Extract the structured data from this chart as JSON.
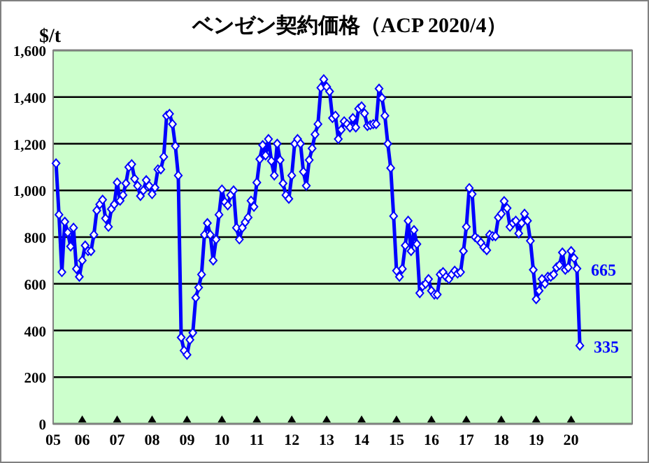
{
  "chart_data": {
    "type": "line",
    "title": "ベンゼン契約価格（ACP 2020/4）",
    "ylabel": "$/t",
    "color": "#0000ff",
    "marker": "diamond",
    "grid": "y",
    "xlim": [
      "2005-03",
      "2021-10"
    ],
    "ylim": [
      0,
      1600
    ],
    "xticks": [
      {
        "value": "2005-03",
        "label": "05"
      },
      {
        "value": "2006-01",
        "label": "06"
      },
      {
        "value": "2007-01",
        "label": "07"
      },
      {
        "value": "2008-01",
        "label": "08"
      },
      {
        "value": "2009-01",
        "label": "09"
      },
      {
        "value": "2010-01",
        "label": "10"
      },
      {
        "value": "2011-01",
        "label": "11"
      },
      {
        "value": "2012-01",
        "label": "12"
      },
      {
        "value": "2013-01",
        "label": "13"
      },
      {
        "value": "2014-01",
        "label": "14"
      },
      {
        "value": "2015-01",
        "label": "15"
      },
      {
        "value": "2016-01",
        "label": "16"
      },
      {
        "value": "2017-01",
        "label": "17"
      },
      {
        "value": "2018-01",
        "label": "18"
      },
      {
        "value": "2019-01",
        "label": "19"
      },
      {
        "value": "2020-01",
        "label": "20"
      }
    ],
    "yticks": [
      0,
      200,
      400,
      600,
      800,
      {
        "value": 1000,
        "label": "1,000"
      },
      {
        "value": 1200,
        "label": "1,200"
      },
      {
        "value": 1400,
        "label": "1,400"
      },
      {
        "value": 1600,
        "label": "1,600"
      }
    ],
    "x": [
      "2005-04",
      "2005-05",
      "2005-06",
      "2005-07",
      "2005-08",
      "2005-09",
      "2005-10",
      "2005-11",
      "2005-12",
      "2006-01",
      "2006-02",
      "2006-03",
      "2006-04",
      "2006-05",
      "2006-06",
      "2006-07",
      "2006-08",
      "2006-09",
      "2006-10",
      "2006-11",
      "2006-12",
      "2007-01",
      "2007-02",
      "2007-03",
      "2007-04",
      "2007-05",
      "2007-06",
      "2007-07",
      "2007-08",
      "2007-09",
      "2007-10",
      "2007-11",
      "2007-12",
      "2008-01",
      "2008-02",
      "2008-03",
      "2008-04",
      "2008-05",
      "2008-06",
      "2008-07",
      "2008-08",
      "2008-09",
      "2008-10",
      "2008-11",
      "2008-12",
      "2009-01",
      "2009-02",
      "2009-03",
      "2009-04",
      "2009-05",
      "2009-06",
      "2009-07",
      "2009-08",
      "2009-09",
      "2009-10",
      "2009-11",
      "2009-12",
      "2010-01",
      "2010-02",
      "2010-03",
      "2010-04",
      "2010-05",
      "2010-06",
      "2010-07",
      "2010-08",
      "2010-09",
      "2010-10",
      "2010-11",
      "2010-12",
      "2011-01",
      "2011-02",
      "2011-03",
      "2011-04",
      "2011-05",
      "2011-06",
      "2011-07",
      "2011-08",
      "2011-09",
      "2011-10",
      "2011-11",
      "2011-12",
      "2012-01",
      "2012-02",
      "2012-03",
      "2012-04",
      "2012-05",
      "2012-06",
      "2012-07",
      "2012-08",
      "2012-09",
      "2012-10",
      "2012-11",
      "2012-12",
      "2013-01",
      "2013-02",
      "2013-03",
      "2013-04",
      "2013-05",
      "2013-06",
      "2013-07",
      "2013-08",
      "2013-09",
      "2013-10",
      "2013-11",
      "2013-12",
      "2014-01",
      "2014-02",
      "2014-03",
      "2014-04",
      "2014-05",
      "2014-06",
      "2014-07",
      "2014-08",
      "2014-09",
      "2014-10",
      "2014-11",
      "2014-12",
      "2015-01",
      "2015-02",
      "2015-03",
      "2015-04",
      "2015-05",
      "2015-06",
      "2015-07",
      "2015-08",
      "2015-09",
      "2015-10",
      "2015-11",
      "2015-12",
      "2016-01",
      "2016-02",
      "2016-03",
      "2016-04",
      "2016-05",
      "2016-06",
      "2016-07",
      "2016-08",
      "2016-09",
      "2016-10",
      "2016-11",
      "2016-12",
      "2017-01",
      "2017-02",
      "2017-03",
      "2017-04",
      "2017-05",
      "2017-06",
      "2017-07",
      "2017-08",
      "2017-09",
      "2017-10",
      "2017-11",
      "2017-12",
      "2018-01",
      "2018-02",
      "2018-03",
      "2018-04",
      "2018-05",
      "2018-06",
      "2018-07",
      "2018-08",
      "2018-09",
      "2018-10",
      "2018-11",
      "2018-12",
      "2019-01",
      "2019-02",
      "2019-03",
      "2019-04",
      "2019-05",
      "2019-06",
      "2019-07",
      "2019-08",
      "2019-09",
      "2019-10",
      "2019-11",
      "2019-12",
      "2020-01",
      "2020-02",
      "2020-03",
      "2020-04"
    ],
    "values": [
      1116,
      896,
      650,
      866,
      820,
      760,
      840,
      664,
      630,
      700,
      764,
      740,
      740,
      810,
      914,
      940,
      960,
      880,
      844,
      920,
      940,
      1034,
      956,
      980,
      1030,
      1100,
      1112,
      1050,
      1020,
      976,
      1000,
      1044,
      1020,
      984,
      1012,
      1090,
      1090,
      1144,
      1320,
      1328,
      1284,
      1190,
      1064,
      370,
      314,
      296,
      360,
      390,
      540,
      584,
      640,
      810,
      860,
      810,
      700,
      790,
      896,
      1004,
      950,
      936,
      980,
      1000,
      840,
      790,
      840,
      864,
      884,
      956,
      930,
      1034,
      1134,
      1194,
      1150,
      1220,
      1126,
      1064,
      1200,
      1130,
      1030,
      980,
      964,
      1064,
      1200,
      1220,
      1200,
      1080,
      1020,
      1130,
      1180,
      1240,
      1284,
      1440,
      1476,
      1444,
      1424,
      1310,
      1320,
      1220,
      1260,
      1296,
      1284,
      1270,
      1310,
      1270,
      1350,
      1360,
      1330,
      1276,
      1280,
      1284,
      1284,
      1436,
      1396,
      1320,
      1200,
      1096,
      890,
      656,
      630,
      664,
      764,
      870,
      740,
      830,
      770,
      560,
      590,
      600,
      620,
      570,
      554,
      554,
      640,
      650,
      630,
      620,
      640,
      656,
      644,
      650,
      740,
      844,
      1010,
      984,
      800,
      790,
      776,
      756,
      744,
      810,
      804,
      804,
      884,
      900,
      954,
      924,
      844,
      860,
      870,
      816,
      860,
      900,
      870,
      784,
      660,
      534,
      570,
      620,
      600,
      630,
      630,
      640,
      670,
      680,
      734,
      660,
      670,
      740,
      710,
      665,
      335
    ],
    "annotations": [
      {
        "text": "665",
        "x": "2020-03",
        "y": 665
      },
      {
        "text": "335",
        "x": "2020-04",
        "y": 335
      }
    ]
  }
}
